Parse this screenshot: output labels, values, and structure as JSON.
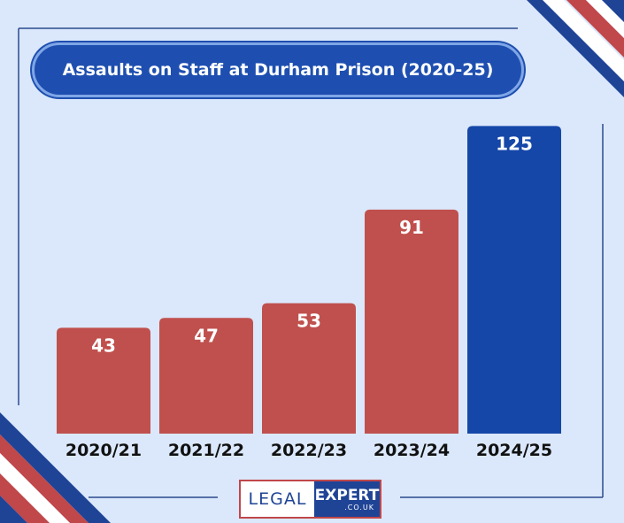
{
  "chart_data": {
    "type": "bar",
    "title": "Assaults on Staff at Durham Prison (2020-25)",
    "categories": [
      "2020/21",
      "2021/22",
      "2022/23",
      "2023/24",
      "2024/25"
    ],
    "values": [
      43,
      47,
      53,
      91,
      125
    ],
    "xlabel": "",
    "ylabel": "",
    "ylim": [
      0,
      128
    ],
    "grid": false,
    "data_labels": true,
    "colors": {
      "bar": "#c0504d",
      "highlight_bar": "#1547a8",
      "background": "#dbe8fb",
      "title_pill": "#1e4fb0",
      "frame": "#2a4a8c"
    },
    "highlight_index": 4
  },
  "logo": {
    "left": "LEGAL",
    "right": "EXPERT",
    "suffix": ".CO.UK"
  }
}
